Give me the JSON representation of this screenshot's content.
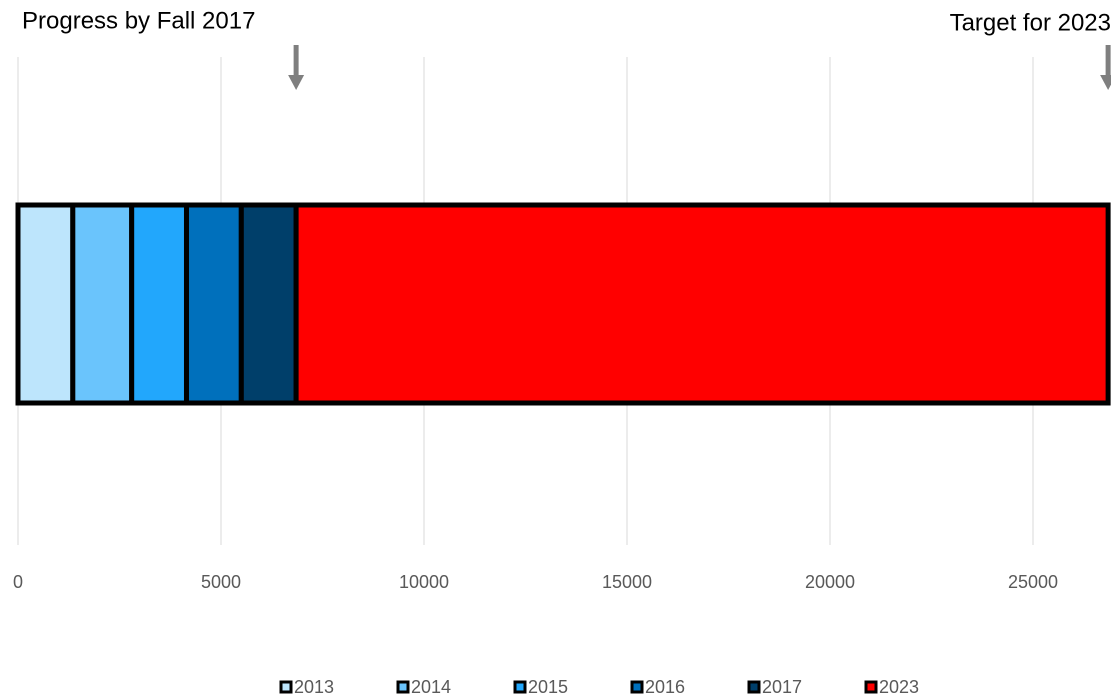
{
  "chart_data": {
    "type": "stacked-bar-horizontal",
    "annotations": [
      "Progress by Fall 2017",
      "Target for 2023"
    ],
    "categories": [
      null
    ],
    "series": [
      {
        "name": "2013",
        "color": "#bde5fc",
        "values": [
          1350
        ]
      },
      {
        "name": "2014",
        "color": "#6ac4fc",
        "values": [
          1450
        ]
      },
      {
        "name": "2015",
        "color": "#22a7fc",
        "values": [
          1350
        ]
      },
      {
        "name": "2016",
        "color": "#0070bc",
        "values": [
          1350
        ]
      },
      {
        "name": "2017",
        "color": "#003f6a",
        "values": [
          1350
        ]
      },
      {
        "name": "2023",
        "color": "#ff0000",
        "values": [
          20000
        ]
      }
    ],
    "xlim": [
      0,
      30000
    ],
    "xticks": [
      0,
      5000,
      10000,
      15000,
      20000,
      25000
    ],
    "grid": true
  }
}
